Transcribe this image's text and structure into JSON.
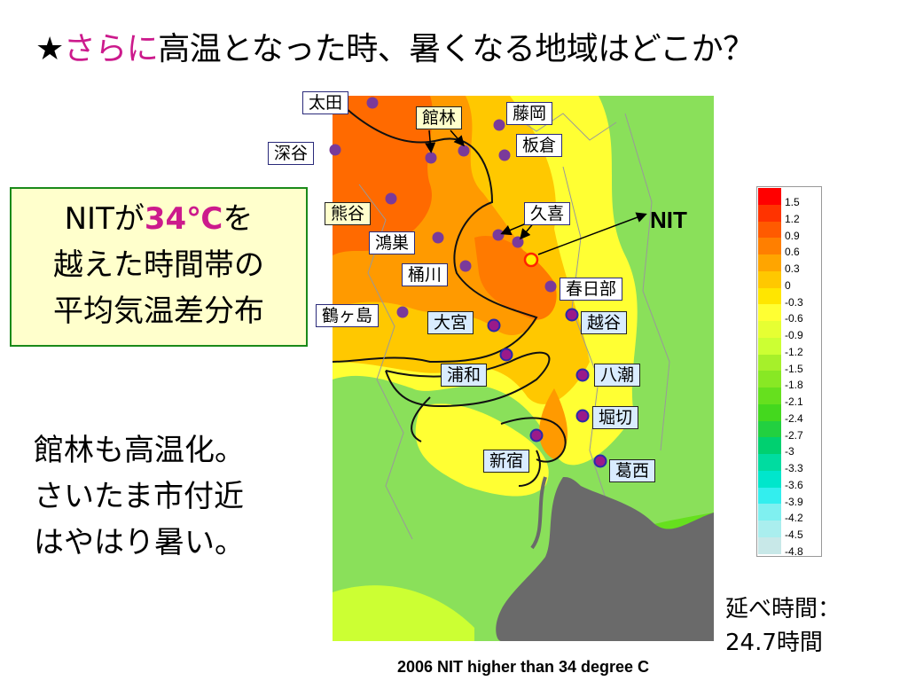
{
  "title": {
    "star": "★",
    "highlight": "さらに",
    "rest": "高温となった時、暑くなる地域はどこか？"
  },
  "info": {
    "line1_pre": "NITが",
    "line1_temp": "34℃",
    "line1_post": "を",
    "line2": "越えた時間帯の",
    "line3": "平均気温差分布"
  },
  "note": {
    "line1": "館林も高温化。",
    "line2": "さいたま市付近",
    "line3": "はやはり暑い。"
  },
  "stations": [
    {
      "name": "太田",
      "style": "white navy"
    },
    {
      "name": "藤岡",
      "style": "white navy"
    },
    {
      "name": "館林",
      "style": "yellow"
    },
    {
      "name": "板倉",
      "style": "white navy"
    },
    {
      "name": "深谷",
      "style": "white navy"
    },
    {
      "name": "熊谷",
      "style": "yellow"
    },
    {
      "name": "久喜",
      "style": "white navy"
    },
    {
      "name": "鴻巣",
      "style": "white navy"
    },
    {
      "name": "桶川",
      "style": "white navy"
    },
    {
      "name": "春日部",
      "style": "white navy"
    },
    {
      "name": "鶴ヶ島",
      "style": "white navy"
    },
    {
      "name": "大宮",
      "style": "blue"
    },
    {
      "name": "越谷",
      "style": "blue"
    },
    {
      "name": "浦和",
      "style": "blue"
    },
    {
      "name": "八潮",
      "style": "blue"
    },
    {
      "name": "堀切",
      "style": "blue"
    },
    {
      "name": "新宿",
      "style": "blue"
    },
    {
      "name": "葛西",
      "style": "blue"
    }
  ],
  "nit_label": "NIT",
  "legend": {
    "ticks": [
      "1.5",
      "1.2",
      "0.9",
      "0.6",
      "0.3",
      "0",
      "-0.3",
      "-0.6",
      "-0.9",
      "-1.2",
      "-1.5",
      "-1.8",
      "-2.1",
      "-2.4",
      "-2.7",
      "-3",
      "-3.3",
      "-3.6",
      "-3.9",
      "-4.2",
      "-4.5",
      "-4.8"
    ],
    "colors": [
      "#ff0000",
      "#ff3300",
      "#ff5a00",
      "#ff7f00",
      "#ffa500",
      "#ffc800",
      "#ffe600",
      "#ffff33",
      "#e6ff33",
      "#ccff33",
      "#a6f02a",
      "#88e824",
      "#66e01e",
      "#44d81e",
      "#22d040",
      "#00d070",
      "#00dca0",
      "#00e6cc",
      "#33eeee",
      "#7ff0f0",
      "#aaeeee",
      "#c8e8e8"
    ]
  },
  "duration": {
    "line1": "延べ時間：",
    "line2": "24.7時間"
  },
  "caption": "2006 NIT higher than 34 degree C"
}
